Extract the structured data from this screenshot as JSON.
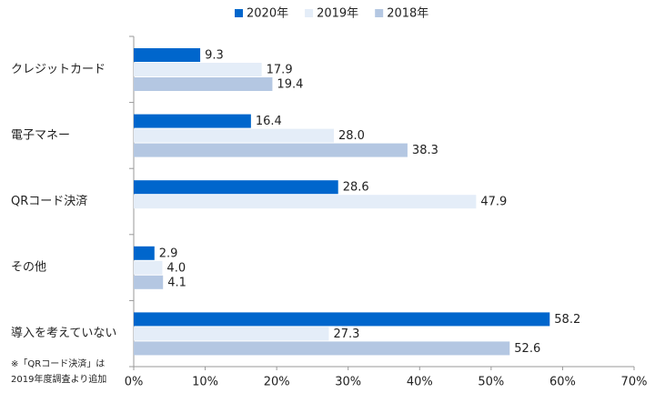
{
  "chart_data": {
    "type": "bar",
    "orientation": "horizontal",
    "categories": [
      "クレジットカード",
      "電子マネー",
      "QRコード決済",
      "その他",
      "導入を考えていない"
    ],
    "series": [
      {
        "name": "2020年",
        "color": "#0066cc",
        "values": [
          9.3,
          16.4,
          28.6,
          2.9,
          58.2
        ],
        "value_labels": [
          "9.3",
          "16.4",
          "28.6",
          "2.9",
          "58.2"
        ]
      },
      {
        "name": "2019年",
        "color": "#e4edf8",
        "values": [
          17.9,
          28.0,
          47.9,
          4.0,
          27.3
        ],
        "value_labels": [
          "17.9",
          "28.0",
          "47.9",
          "4.0",
          "27.3"
        ]
      },
      {
        "name": "2018年",
        "color": "#b4c7e2",
        "values": [
          19.4,
          38.3,
          null,
          4.1,
          52.6
        ],
        "value_labels": [
          "19.4",
          "38.3",
          null,
          "4.1",
          "52.6"
        ]
      }
    ],
    "xlim": [
      0,
      70
    ],
    "xticks": [
      {
        "value": 0,
        "label": "0%"
      },
      {
        "value": 10,
        "label": "10%"
      },
      {
        "value": 20,
        "label": "20%"
      },
      {
        "value": 30,
        "label": "30%"
      },
      {
        "value": 40,
        "label": "40%"
      },
      {
        "value": 50,
        "label": "50%"
      },
      {
        "value": 60,
        "label": "60%"
      },
      {
        "value": 70,
        "label": "70%"
      }
    ],
    "note": [
      "※「QRコード決済」は",
      "2019年度調査より追加"
    ],
    "legend": "top"
  }
}
